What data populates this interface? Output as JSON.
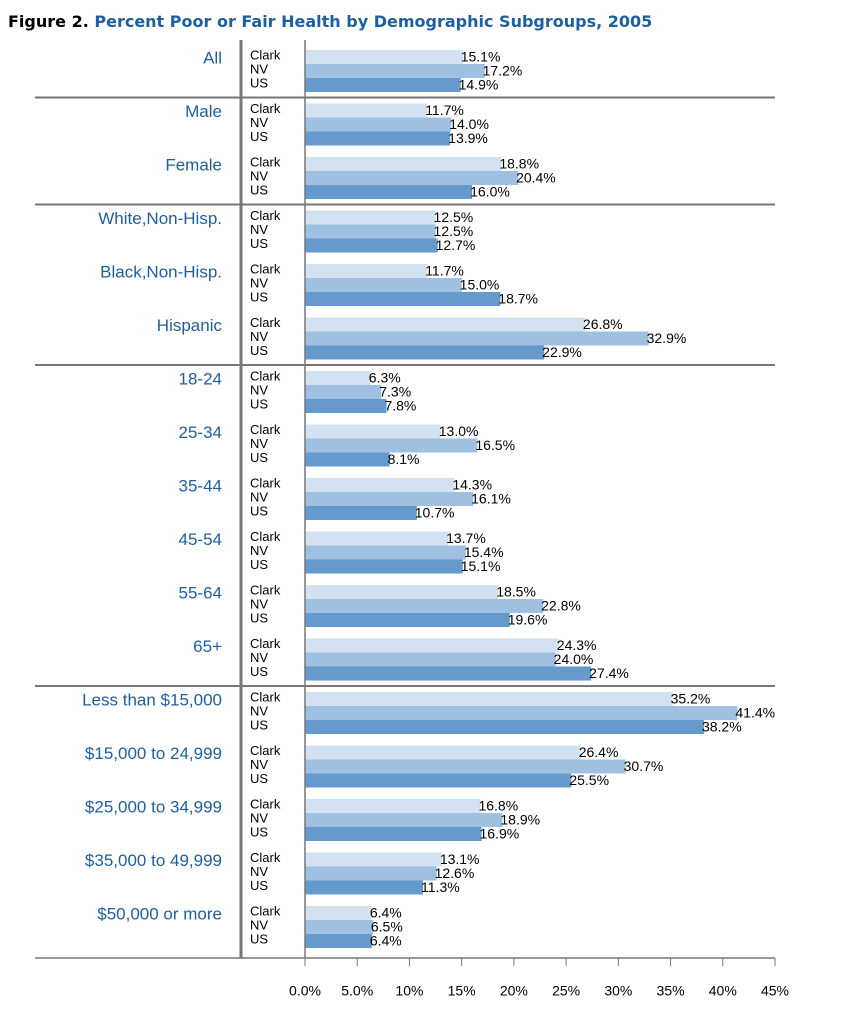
{
  "chart_data": {
    "type": "bar",
    "orientation": "horizontal",
    "figure_label": "Figure 2.",
    "title": "Percent Poor or Fair Health by Demographic Subgroups, 2005",
    "categories": [
      "All",
      "Male",
      "Female",
      "White,Non-Hisp.",
      "Black,Non-Hisp.",
      "Hispanic",
      "18-24",
      "25-34",
      "35-44",
      "45-54",
      "55-64",
      "65+",
      "Less than $15,000",
      "$15,000 to 24,999",
      "$25,000 to 34,999",
      "$35,000 to 49,999",
      "$50,000 or more"
    ],
    "series": [
      {
        "name": "Clark",
        "color": "#d3e2f0",
        "values": [
          15.1,
          11.7,
          18.8,
          12.5,
          11.7,
          26.8,
          6.3,
          13.0,
          14.3,
          13.7,
          18.5,
          24.3,
          35.2,
          26.4,
          16.8,
          13.1,
          6.4
        ],
        "value_labels": [
          "15.1%",
          "11.7%",
          "18.8%",
          "12.5%",
          "11.7%",
          "26.8%",
          "6.3%",
          "13.0%",
          "14.3%",
          "13.7%",
          "18.5%",
          "24.3%",
          "35.2%",
          "26.4%",
          "16.8%",
          "13.1%",
          "6.4%"
        ]
      },
      {
        "name": "NV",
        "color": "#9fc0e1",
        "values": [
          17.2,
          14.0,
          20.4,
          12.5,
          15.0,
          32.9,
          7.3,
          16.5,
          16.1,
          15.4,
          22.8,
          24.0,
          41.4,
          30.7,
          18.9,
          12.6,
          6.5
        ],
        "value_labels": [
          "17.2%",
          "14.0%",
          "20.4%",
          "12.5%",
          "15.0%",
          "32.9%",
          "7.3%",
          "16.5%",
          "16.1%",
          "15.4%",
          "22.8%",
          "24.0%",
          "41.4%",
          "30.7%",
          "18.9%",
          "12.6%",
          "6.5%"
        ]
      },
      {
        "name": "US",
        "color": "#6699cc",
        "values": [
          14.9,
          13.9,
          16.0,
          12.7,
          18.7,
          22.9,
          7.8,
          8.1,
          10.7,
          15.1,
          19.6,
          27.4,
          38.2,
          25.5,
          16.9,
          11.3,
          6.4
        ],
        "value_labels": [
          "14.9%",
          "13.9%",
          "16.0%",
          "12.7%",
          "18.7%",
          "22.9%",
          "7.8%",
          "8.1%",
          "10.7%",
          "15.1%",
          "19.6%",
          "27.4%",
          "38.2%",
          "25.5%",
          "16.9%",
          "11.3%",
          "6.4%"
        ]
      }
    ],
    "xlim": [
      0,
      45
    ],
    "xticks": [
      {
        "value": 0,
        "label": "0.0%"
      },
      {
        "value": 5,
        "label": "5.0%"
      },
      {
        "value": 10,
        "label": "10%"
      },
      {
        "value": 15,
        "label": "15%"
      },
      {
        "value": 20,
        "label": "20%"
      },
      {
        "value": 25,
        "label": "25%"
      },
      {
        "value": 30,
        "label": "30%"
      },
      {
        "value": 35,
        "label": "35%"
      },
      {
        "value": 40,
        "label": "40%"
      },
      {
        "value": 45,
        "label": "45%"
      }
    ]
  }
}
